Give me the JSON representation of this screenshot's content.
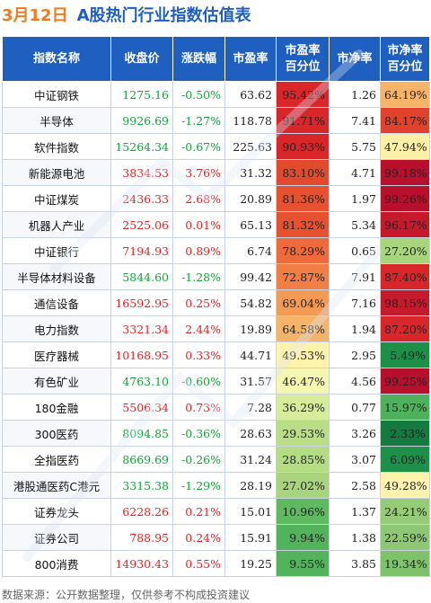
{
  "header": {
    "date": "3月12日",
    "title": "A股热门行业指数估值表"
  },
  "table": {
    "columns": [
      "指数名称",
      "收盘价",
      "涨跌幅",
      "市盈率",
      "市盈率\n百分位",
      "市净率",
      "市净率\n百分位"
    ],
    "rows": [
      {
        "name": "中证钢铁",
        "close": "1275.16",
        "change": "-0.50%",
        "pe": "63.62",
        "pe_pct": "95.42%",
        "pb": "1.26",
        "pb_pct": "64.19%",
        "pe_color": "#d9262b",
        "pb_color": "#f6b46b",
        "dir": "down"
      },
      {
        "name": "半导体",
        "close": "9926.69",
        "change": "-1.27%",
        "pe": "118.78",
        "pe_pct": "91.71%",
        "pb": "7.41",
        "pb_pct": "84.17%",
        "pe_color": "#d9262b",
        "pb_color": "#e0422e",
        "dir": "down"
      },
      {
        "name": "软件指数",
        "close": "15264.34",
        "change": "-0.67%",
        "pe": "225.63",
        "pe_pct": "90.93%",
        "pb": "5.75",
        "pb_pct": "47.94%",
        "pe_color": "#d9262b",
        "pb_color": "#fff0a8",
        "dir": "down"
      },
      {
        "name": "新能源电池",
        "close": "3834.53",
        "change": "3.76%",
        "pe": "31.32",
        "pe_pct": "83.10%",
        "pb": "4.71",
        "pb_pct": "99.18%",
        "pe_color": "#e24a2d",
        "pb_color": "#b8102c",
        "dir": "up"
      },
      {
        "name": "中证煤炭",
        "close": "2436.33",
        "change": "2.68%",
        "pe": "20.89",
        "pe_pct": "81.36%",
        "pb": "1.97",
        "pb_pct": "99.26%",
        "pe_color": "#e65230",
        "pb_color": "#b8102c",
        "dir": "up"
      },
      {
        "name": "机器人产业",
        "close": "2525.06",
        "change": "0.01%",
        "pe": "65.13",
        "pe_pct": "81.32%",
        "pb": "5.34",
        "pb_pct": "96.17%",
        "pe_color": "#e65230",
        "pb_color": "#c41a2c",
        "dir": "up"
      },
      {
        "name": "中证银行",
        "close": "7194.93",
        "change": "0.89%",
        "pe": "6.74",
        "pe_pct": "78.29%",
        "pb": "0.65",
        "pb_pct": "27.20%",
        "pe_color": "#ed6a3c",
        "pb_color": "#a8d47e",
        "dir": "up"
      },
      {
        "name": "半导体材料设备",
        "close": "5844.60",
        "change": "-1.28%",
        "pe": "99.42",
        "pe_pct": "72.87%",
        "pb": "7.91",
        "pb_pct": "87.40%",
        "pe_color": "#f17e46",
        "pb_color": "#d9262b",
        "dir": "down"
      },
      {
        "name": "通信设备",
        "close": "16592.95",
        "change": "0.25%",
        "pe": "54.82",
        "pe_pct": "69.04%",
        "pb": "7.16",
        "pb_pct": "98.15%",
        "pe_color": "#f39a55",
        "pb_color": "#c41a2c",
        "dir": "up"
      },
      {
        "name": "电力指数",
        "close": "3321.34",
        "change": "2.44%",
        "pe": "19.89",
        "pe_pct": "64.58%",
        "pb": "1.94",
        "pb_pct": "87.20%",
        "pe_color": "#f6b46b",
        "pb_color": "#d9262b",
        "dir": "up"
      },
      {
        "name": "医疗器械",
        "close": "10168.95",
        "change": "0.33%",
        "pe": "44.71",
        "pe_pct": "49.53%",
        "pb": "2.95",
        "pb_pct": "5.49%",
        "pe_color": "#fff3ad",
        "pb_color": "#1e8f48",
        "dir": "up"
      },
      {
        "name": "有色矿业",
        "close": "4763.10",
        "change": "-0.60%",
        "pe": "31.57",
        "pe_pct": "46.47%",
        "pb": "4.56",
        "pb_pct": "99.25%",
        "pe_color": "#f3f7b0",
        "pb_color": "#b8102c",
        "dir": "down"
      },
      {
        "name": "180金融",
        "close": "5506.34",
        "change": "0.73%",
        "pe": "7.28",
        "pe_pct": "36.29%",
        "pb": "0.77",
        "pb_pct": "15.97%",
        "pe_color": "#d6ec9a",
        "pb_color": "#4fb15c",
        "dir": "up"
      },
      {
        "name": "300医药",
        "close": "8094.85",
        "change": "-0.36%",
        "pe": "28.63",
        "pe_pct": "29.53%",
        "pb": "3.26",
        "pb_pct": "2.33%",
        "pe_color": "#b9de86",
        "pb_color": "#147a3e",
        "dir": "down"
      },
      {
        "name": "全指医药",
        "close": "8669.69",
        "change": "-0.26%",
        "pe": "31.24",
        "pe_pct": "28.85%",
        "pb": "3.07",
        "pb_pct": "6.09%",
        "pe_color": "#b4dc84",
        "pb_color": "#1e8f48",
        "dir": "down"
      },
      {
        "name": "港股通医药C港元",
        "close": "3315.38",
        "change": "-1.29%",
        "pe": "28.19",
        "pe_pct": "27.02%",
        "pb": "2.58",
        "pb_pct": "49.28%",
        "pe_color": "#a8d47e",
        "pb_color": "#fff3ad",
        "dir": "down"
      },
      {
        "name": "证券龙头",
        "close": "6228.26",
        "change": "0.21%",
        "pe": "15.01",
        "pe_pct": "10.96%",
        "pb": "1.37",
        "pb_pct": "24.21%",
        "pe_color": "#5fb960",
        "pb_color": "#96cc78",
        "dir": "up"
      },
      {
        "name": "证券公司",
        "close": "788.95",
        "change": "0.24%",
        "pe": "15.91",
        "pe_pct": "9.94%",
        "pb": "1.38",
        "pb_pct": "22.59%",
        "pe_color": "#52b35c",
        "pb_color": "#8ec874",
        "dir": "up"
      },
      {
        "name": "800消费",
        "close": "14930.43",
        "change": "0.55%",
        "pe": "19.25",
        "pe_pct": "9.55%",
        "pb": "3.85",
        "pb_pct": "19.34%",
        "pe_color": "#52b35c",
        "pb_color": "#7ec26c",
        "dir": "up"
      }
    ]
  },
  "footer": {
    "source": "数据来源：公开数据整理，仅供参考不构成投资建议"
  }
}
